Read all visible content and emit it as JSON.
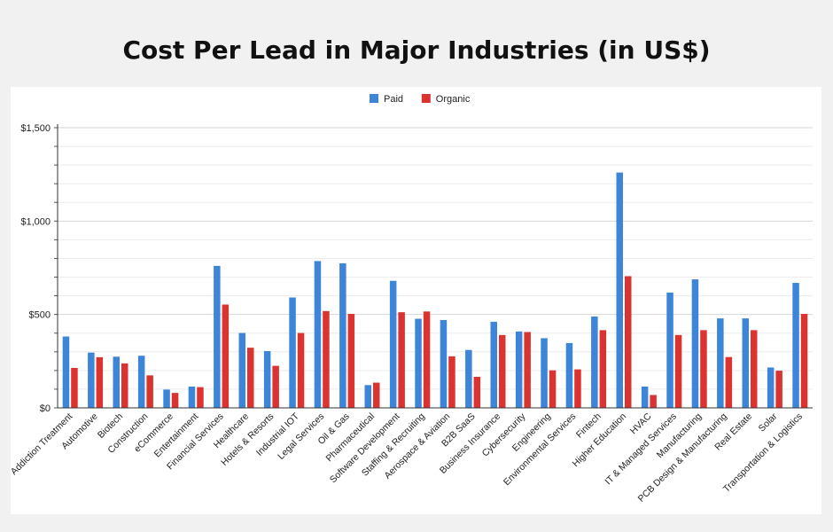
{
  "chart_data": {
    "type": "bar",
    "title": "Cost Per Lead in Major Industries (in US$)",
    "xlabel": "",
    "ylabel": "",
    "ylim": [
      0,
      1500
    ],
    "yticks": [
      0,
      500,
      1000,
      1500
    ],
    "ytick_labels": [
      "$0",
      "$500",
      "$1,000",
      "$1,500"
    ],
    "grid": true,
    "legend_position": "top-center",
    "colors": {
      "Paid": "#3d85d8",
      "Organic": "#db3330"
    },
    "categories": [
      "Addiction Treatment",
      "Automotive",
      "Biotech",
      "Construction",
      "eCommerce",
      "Entertainment",
      "Financial Services",
      "Healthcare",
      "Hotels & Resorts",
      "Industrial IOT",
      "Legal Services",
      "Oil & Gas",
      "Pharmaceutical",
      "Software Development",
      "Staffing & Recruiting",
      "Aerospace & Aviation",
      "B2B SaaS",
      "Business Insurance",
      "Cybersecurity",
      "Engineering",
      "Environmental Services",
      "Fintech",
      "Higher Education",
      "HVAC",
      "IT & Managed Services",
      "Manufacturing",
      "PCB Design & Manufacturing",
      "Real Estate",
      "Solar",
      "Transportation & Logistics"
    ],
    "series": [
      {
        "name": "Paid",
        "values": [
          382,
          296,
          274,
          279,
          98,
          114,
          760,
          401,
          304,
          591,
          786,
          774,
          122,
          680,
          477,
          470,
          310,
          461,
          409,
          373,
          347,
          489,
          1260,
          114,
          617,
          688,
          479,
          479,
          216,
          669
        ]
      },
      {
        "name": "Organic",
        "values": [
          214,
          271,
          238,
          174,
          80,
          111,
          553,
          322,
          225,
          401,
          518,
          503,
          135,
          512,
          516,
          276,
          166,
          390,
          406,
          201,
          206,
          416,
          705,
          69,
          390,
          416,
          272,
          416,
          199,
          503
        ]
      }
    ]
  }
}
